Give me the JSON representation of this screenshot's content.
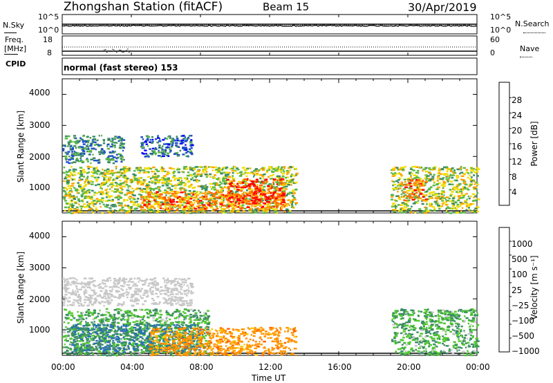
{
  "header": {
    "station": "Zhongshan Station (fitACF)",
    "beam": "Beam 15",
    "date": "30/Apr/2019"
  },
  "noise_panel": {
    "left_label": "N.Sky",
    "right_label": "N.Search",
    "left_ticks": [
      "10^5",
      "10^0"
    ],
    "right_ticks": [
      "10^5",
      "10^0"
    ]
  },
  "freq_panel": {
    "left_label_1": "Freq.",
    "left_label_2": "[MHz]",
    "left_ticks": [
      "18",
      "8"
    ],
    "right_ticks": [
      "60",
      "0"
    ],
    "right_label": "Nave"
  },
  "cpid": {
    "label": "CPID",
    "text": "normal (fast stereo) 153"
  },
  "power_panel": {
    "ylabel": "Slant Range [km]",
    "yticks": [
      "4000",
      "3000",
      "2000",
      "1000"
    ],
    "colorbar_label": "Power [dB]",
    "colorbar_ticks": [
      "28",
      "24",
      "20",
      "16",
      "12",
      "8",
      "4"
    ],
    "colors": [
      "#0000ff",
      "#2050c8",
      "#3c8c64",
      "#5cb844",
      "#f0dc00",
      "#ffa000",
      "#ff6400",
      "#ff0000"
    ]
  },
  "velocity_panel": {
    "ylabel": "Slant Range [km]",
    "yticks": [
      "4000",
      "3000",
      "2000",
      "1000"
    ],
    "colorbar_label": "Velocity [m s⁻¹]",
    "colorbar_ticks": [
      "1000",
      "500",
      "100",
      "25",
      "−25",
      "−100",
      "−500",
      "−1000"
    ],
    "colors": [
      "#2040c0",
      "#2870b8",
      "#3c8c64",
      "#50c830",
      "#c8c8c8",
      "#ffc800",
      "#ff9600",
      "#ff6400",
      "#ff0000"
    ]
  },
  "xaxis": {
    "ticks": [
      "00:00",
      "04:00",
      "08:00",
      "12:00",
      "16:00",
      "20:00",
      "00:00"
    ],
    "label": "Time UT"
  },
  "chart_data": [
    {
      "type": "heatmap",
      "title": "Power",
      "xlabel": "Time UT",
      "ylabel": "Slant Range [km]",
      "xlim": [
        0,
        24
      ],
      "ylim": [
        180,
        4500
      ],
      "colorbar": {
        "label": "Power [dB]",
        "range": [
          0,
          32
        ],
        "ticks": [
          4,
          8,
          12,
          16,
          20,
          24,
          28
        ]
      },
      "regions": [
        {
          "t_start": 0.0,
          "t_end": 13.5,
          "r_start": 200,
          "r_end": 1700,
          "power_db": 16
        },
        {
          "t_start": 4.5,
          "t_end": 12.8,
          "r_start": 300,
          "r_end": 900,
          "power_db": 24
        },
        {
          "t_start": 9.5,
          "t_end": 12.8,
          "r_start": 500,
          "r_end": 1300,
          "power_db": 28
        },
        {
          "t_start": 0.0,
          "t_end": 3.5,
          "r_start": 1800,
          "r_end": 2700,
          "power_db": 10
        },
        {
          "t_start": 4.5,
          "t_end": 7.5,
          "r_start": 2000,
          "r_end": 2700,
          "power_db": 8
        },
        {
          "t_start": 19.0,
          "t_end": 24.0,
          "r_start": 200,
          "r_end": 1700,
          "power_db": 16
        },
        {
          "t_start": 19.7,
          "t_end": 21.0,
          "r_start": 600,
          "r_end": 1300,
          "power_db": 26
        }
      ]
    },
    {
      "type": "heatmap",
      "title": "Velocity",
      "xlabel": "Time UT",
      "ylabel": "Slant Range [km]",
      "xlim": [
        0,
        24
      ],
      "ylim": [
        180,
        4500
      ],
      "colorbar": {
        "label": "Velocity [m s-1]",
        "ticks": [
          1000,
          500,
          100,
          25,
          -25,
          -100,
          -500,
          -1000
        ]
      },
      "regions": [
        {
          "t_start": 0.0,
          "t_end": 8.5,
          "r_start": 200,
          "r_end": 1700,
          "velocity": 100
        },
        {
          "t_start": 0.5,
          "t_end": 8.0,
          "r_start": 300,
          "r_end": 1200,
          "velocity": 500
        },
        {
          "t_start": 5.0,
          "t_end": 13.5,
          "r_start": 200,
          "r_end": 1100,
          "velocity": -300
        },
        {
          "t_start": 0.0,
          "t_end": 7.5,
          "r_start": 1800,
          "r_end": 2700,
          "velocity": 0
        },
        {
          "t_start": 19.0,
          "t_end": 24.0,
          "r_start": 200,
          "r_end": 1700,
          "velocity": 100
        }
      ]
    }
  ]
}
